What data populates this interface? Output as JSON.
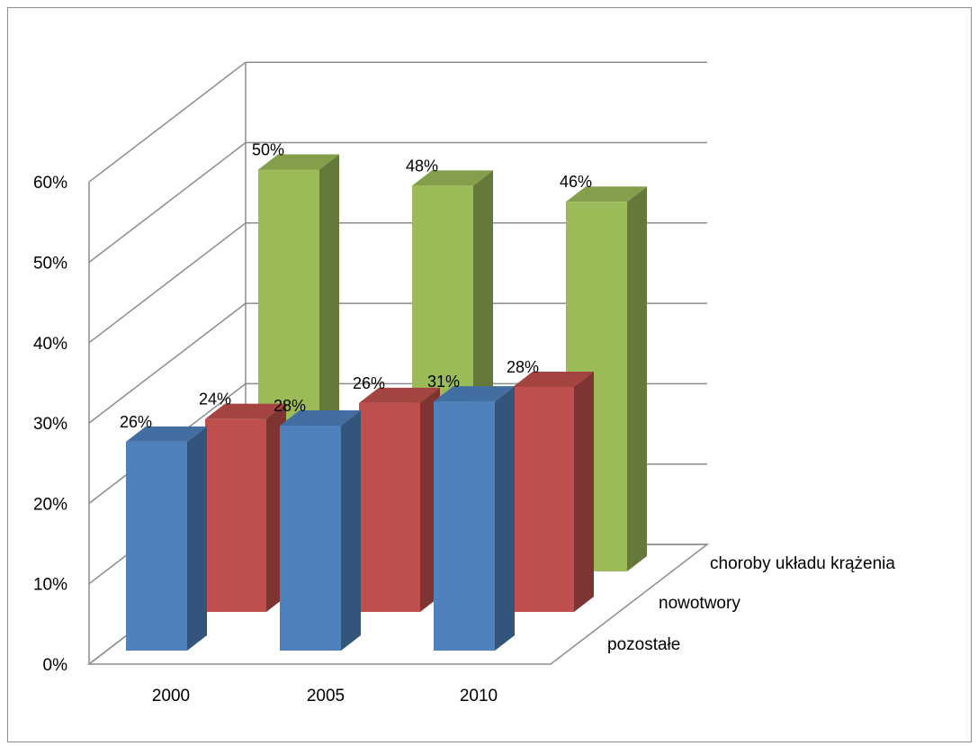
{
  "chart_data": {
    "type": "bar",
    "variant": "3d-column",
    "title": "",
    "xlabel": "",
    "ylabel": "",
    "categories": [
      "2000",
      "2005",
      "2010"
    ],
    "series": [
      {
        "name": "pozostałe",
        "values": [
          26,
          28,
          31
        ],
        "color": "#4f81bd"
      },
      {
        "name": "nowotwory",
        "values": [
          24,
          26,
          28
        ],
        "color": "#c0504d"
      },
      {
        "name": "choroby układu krążenia",
        "values": [
          50,
          48,
          46
        ],
        "color": "#9bbb59"
      }
    ],
    "ylim": [
      0,
      60
    ],
    "y_ticks": [
      "0%",
      "10%",
      "20%",
      "30%",
      "40%",
      "50%",
      "60%"
    ],
    "value_suffix": "%",
    "grid": true,
    "legend": "none"
  }
}
